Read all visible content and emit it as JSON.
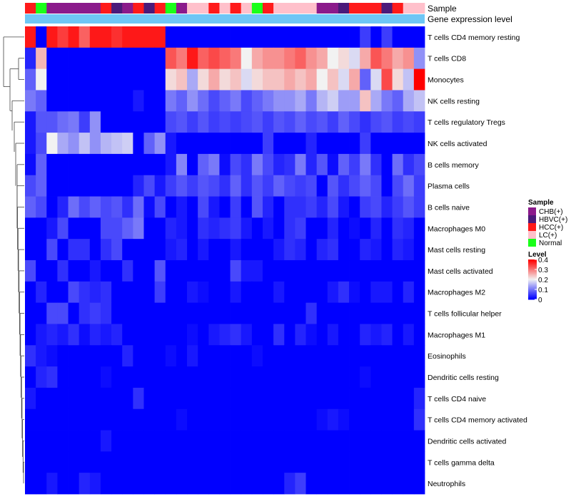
{
  "chart_data": {
    "type": "heatmap",
    "title": "",
    "annotations": {
      "sample_label": "Sample",
      "gene_label": "Gene expression level"
    },
    "sample_groups": [
      {
        "name": "CHB(+)",
        "color": "#8B1A8B"
      },
      {
        "name": "HBVC(+)",
        "color": "#4B1A7A"
      },
      {
        "name": "HCC(+)",
        "color": "#FF1A1A"
      },
      {
        "name": "LC(+)",
        "color": "#FFC0CB"
      },
      {
        "name": "Normal",
        "color": "#1AFF1A"
      }
    ],
    "column_samples": [
      "HCC(+)",
      "Normal",
      "CHB(+)",
      "CHB(+)",
      "CHB(+)",
      "CHB(+)",
      "CHB(+)",
      "HCC(+)",
      "HBVC(+)",
      "CHB(+)",
      "HCC(+)",
      "HBVC(+)",
      "HCC(+)",
      "Normal",
      "CHB(+)",
      "LC(+)",
      "LC(+)",
      "HCC(+)",
      "LC(+)",
      "HCC(+)",
      "LC(+)",
      "Normal",
      "HCC(+)",
      "LC(+)",
      "LC(+)",
      "LC(+)",
      "LC(+)",
      "CHB(+)",
      "CHB(+)",
      "HBVC(+)",
      "HCC(+)",
      "HCC(+)",
      "HCC(+)",
      "HBVC(+)",
      "HCC(+)",
      "LC(+)",
      "LC(+)"
    ],
    "gene_expression_color": "#6EC6F5",
    "rows": [
      "T cells CD4 memory resting",
      "T cells CD8",
      "Monocytes",
      "NK cells resting",
      "T cells regulatory  Tregs",
      "NK cells activated",
      "B cells memory",
      "Plasma cells",
      "B cells naive",
      "Macrophages M0",
      "Mast cells resting",
      "Mast cells activated",
      "Macrophages M2",
      "T cells follicular helper",
      "Macrophages M1",
      "Eosinophils",
      "Dendritic cells resting",
      "T cells CD4 naive",
      "T cells CD4 memory activated",
      "Dendritic cells activated",
      "T cells gamma delta",
      "Neutrophils"
    ],
    "values": [
      [
        0.38,
        0.0,
        0.38,
        0.35,
        0.38,
        0.32,
        0.38,
        0.38,
        0.36,
        0.38,
        0.38,
        0.38,
        0.38,
        0.0,
        0.0,
        0.0,
        0.0,
        0.0,
        0.0,
        0.0,
        0.0,
        0.0,
        0.0,
        0.0,
        0.0,
        0.0,
        0.0,
        0.0,
        0.0,
        0.0,
        0.0,
        0.05,
        0.0,
        0.05,
        0.0,
        0.0,
        0.0
      ],
      [
        0.03,
        0.25,
        0.0,
        0.0,
        0.0,
        0.0,
        0.0,
        0.0,
        0.0,
        0.0,
        0.0,
        0.0,
        0.0,
        0.33,
        0.3,
        0.38,
        0.32,
        0.34,
        0.32,
        0.3,
        0.2,
        0.26,
        0.28,
        0.28,
        0.3,
        0.32,
        0.28,
        0.26,
        0.2,
        0.22,
        0.18,
        0.26,
        0.33,
        0.3,
        0.26,
        0.28,
        0.12
      ],
      [
        0.08,
        0.2,
        0.0,
        0.0,
        0.0,
        0.0,
        0.0,
        0.0,
        0.0,
        0.0,
        0.0,
        0.0,
        0.0,
        0.22,
        0.24,
        0.14,
        0.22,
        0.26,
        0.22,
        0.24,
        0.18,
        0.22,
        0.24,
        0.24,
        0.26,
        0.24,
        0.26,
        0.2,
        0.24,
        0.18,
        0.26,
        0.08,
        0.18,
        0.34,
        0.22,
        0.16,
        0.4
      ],
      [
        0.1,
        0.08,
        0.0,
        0.0,
        0.0,
        0.0,
        0.0,
        0.0,
        0.0,
        0.0,
        0.02,
        0.0,
        0.0,
        0.1,
        0.08,
        0.12,
        0.09,
        0.06,
        0.08,
        0.1,
        0.06,
        0.08,
        0.1,
        0.12,
        0.12,
        0.14,
        0.1,
        0.15,
        0.17,
        0.13,
        0.13,
        0.24,
        0.14,
        0.1,
        0.08,
        0.14,
        0.16
      ],
      [
        0.02,
        0.07,
        0.07,
        0.09,
        0.1,
        0.05,
        0.12,
        0.0,
        0.0,
        0.0,
        0.0,
        0.0,
        0.0,
        0.06,
        0.07,
        0.05,
        0.07,
        0.05,
        0.06,
        0.05,
        0.06,
        0.07,
        0.05,
        0.07,
        0.06,
        0.08,
        0.06,
        0.07,
        0.05,
        0.08,
        0.06,
        0.04,
        0.06,
        0.07,
        0.05,
        0.06,
        0.05
      ],
      [
        0.02,
        0.06,
        0.2,
        0.14,
        0.12,
        0.16,
        0.12,
        0.15,
        0.16,
        0.17,
        0.0,
        0.08,
        0.12,
        0.02,
        0.0,
        0.0,
        0.0,
        0.0,
        0.0,
        0.0,
        0.0,
        0.0,
        0.05,
        0.0,
        0.0,
        0.0,
        0.03,
        0.0,
        0.0,
        0.0,
        0.0,
        0.05,
        0.0,
        0.0,
        0.0,
        0.0,
        0.0
      ],
      [
        0.01,
        0.08,
        0.0,
        0.0,
        0.0,
        0.0,
        0.0,
        0.0,
        0.0,
        0.0,
        0.0,
        0.0,
        0.0,
        0.02,
        0.11,
        0.0,
        0.08,
        0.1,
        0.01,
        0.06,
        0.04,
        0.1,
        0.06,
        0.03,
        0.04,
        0.1,
        0.03,
        0.07,
        0.01,
        0.08,
        0.05,
        0.1,
        0.04,
        0.0,
        0.09,
        0.04,
        0.06
      ],
      [
        0.06,
        0.08,
        0.0,
        0.0,
        0.0,
        0.0,
        0.0,
        0.0,
        0.0,
        0.0,
        0.03,
        0.06,
        0.02,
        0.05,
        0.07,
        0.05,
        0.07,
        0.06,
        0.04,
        0.08,
        0.04,
        0.07,
        0.05,
        0.08,
        0.06,
        0.05,
        0.06,
        0.0,
        0.07,
        0.04,
        0.06,
        0.08,
        0.06,
        0.0,
        0.06,
        0.09,
        0.05
      ],
      [
        0.08,
        0.06,
        0.0,
        0.03,
        0.09,
        0.06,
        0.08,
        0.06,
        0.07,
        0.04,
        0.09,
        0.01,
        0.06,
        0.0,
        0.02,
        0.0,
        0.06,
        0.02,
        0.0,
        0.05,
        0.0,
        0.07,
        0.03,
        0.0,
        0.04,
        0.04,
        0.05,
        0.03,
        0.06,
        0.02,
        0.0,
        0.05,
        0.06,
        0.03,
        0.05,
        0.07,
        0.05
      ],
      [
        0.0,
        0.0,
        0.02,
        0.06,
        0.0,
        0.0,
        0.0,
        0.06,
        0.06,
        0.08,
        0.1,
        0.0,
        0.0,
        0.03,
        0.02,
        0.0,
        0.04,
        0.03,
        0.04,
        0.05,
        0.02,
        0.0,
        0.02,
        0.0,
        0.04,
        0.05,
        0.0,
        0.0,
        0.03,
        0.0,
        0.01,
        0.0,
        0.03,
        0.0,
        0.04,
        0.03,
        0.0
      ],
      [
        0.0,
        0.0,
        0.06,
        0.0,
        0.04,
        0.04,
        0.0,
        0.04,
        0.06,
        0.0,
        0.0,
        0.0,
        0.0,
        0.02,
        0.03,
        0.0,
        0.02,
        0.0,
        0.0,
        0.02,
        0.0,
        0.0,
        0.0,
        0.02,
        0.04,
        0.03,
        0.0,
        0.03,
        0.04,
        0.0,
        0.0,
        0.03,
        0.02,
        0.0,
        0.03,
        0.02,
        0.0
      ],
      [
        0.06,
        0.0,
        0.0,
        0.04,
        0.0,
        0.0,
        0.02,
        0.0,
        0.0,
        0.04,
        0.0,
        0.0,
        0.07,
        0.0,
        0.0,
        0.0,
        0.0,
        0.0,
        0.0,
        0.06,
        0.02,
        0.02,
        0.0,
        0.0,
        0.0,
        0.0,
        0.0,
        0.0,
        0.0,
        0.0,
        0.0,
        0.0,
        0.0,
        0.0,
        0.0,
        0.0,
        0.0
      ],
      [
        0.0,
        0.03,
        0.0,
        0.0,
        0.06,
        0.04,
        0.03,
        0.04,
        0.0,
        0.0,
        0.0,
        0.0,
        0.05,
        0.0,
        0.0,
        0.02,
        0.01,
        0.0,
        0.0,
        0.02,
        0.0,
        0.0,
        0.0,
        0.02,
        0.0,
        0.0,
        0.0,
        0.0,
        0.02,
        0.04,
        0.01,
        0.0,
        0.02,
        0.02,
        0.0,
        0.03,
        0.0
      ],
      [
        0.0,
        0.0,
        0.06,
        0.06,
        0.0,
        0.04,
        0.05,
        0.04,
        0.0,
        0.0,
        0.0,
        0.0,
        0.0,
        0.0,
        0.0,
        0.0,
        0.0,
        0.0,
        0.0,
        0.0,
        0.0,
        0.0,
        0.0,
        0.0,
        0.0,
        0.0,
        0.04,
        0.0,
        0.0,
        0.0,
        0.0,
        0.0,
        0.0,
        0.0,
        0.0,
        0.0,
        0.0
      ],
      [
        0.0,
        0.02,
        0.03,
        0.02,
        0.04,
        0.01,
        0.03,
        0.02,
        0.03,
        0.0,
        0.0,
        0.0,
        0.0,
        0.0,
        0.0,
        0.01,
        0.0,
        0.02,
        0.03,
        0.04,
        0.02,
        0.0,
        0.0,
        0.04,
        0.0,
        0.03,
        0.01,
        0.0,
        0.02,
        0.0,
        0.0,
        0.03,
        0.02,
        0.03,
        0.0,
        0.02,
        0.0
      ],
      [
        0.04,
        0.02,
        0.01,
        0.0,
        0.0,
        0.0,
        0.0,
        0.0,
        0.0,
        0.03,
        0.0,
        0.0,
        0.0,
        0.01,
        0.0,
        0.02,
        0.0,
        0.0,
        0.0,
        0.0,
        0.0,
        0.01,
        0.0,
        0.0,
        0.0,
        0.0,
        0.0,
        0.0,
        0.0,
        0.0,
        0.0,
        0.0,
        0.0,
        0.0,
        0.0,
        0.0,
        0.0
      ],
      [
        0.0,
        0.03,
        0.04,
        0.0,
        0.0,
        0.0,
        0.0,
        0.01,
        0.0,
        0.0,
        0.0,
        0.0,
        0.0,
        0.0,
        0.0,
        0.0,
        0.0,
        0.0,
        0.0,
        0.0,
        0.0,
        0.0,
        0.0,
        0.0,
        0.0,
        0.0,
        0.0,
        0.0,
        0.0,
        0.0,
        0.0,
        0.01,
        0.0,
        0.0,
        0.0,
        0.0,
        0.0
      ],
      [
        0.02,
        0.0,
        0.0,
        0.0,
        0.0,
        0.0,
        0.0,
        0.0,
        0.0,
        0.0,
        0.04,
        0.0,
        0.0,
        0.0,
        0.0,
        0.0,
        0.0,
        0.0,
        0.0,
        0.0,
        0.0,
        0.0,
        0.0,
        0.0,
        0.0,
        0.0,
        0.0,
        0.0,
        0.0,
        0.0,
        0.0,
        0.0,
        0.0,
        0.0,
        0.0,
        0.0,
        0.03
      ],
      [
        0.0,
        0.0,
        0.0,
        0.0,
        0.0,
        0.0,
        0.0,
        0.0,
        0.0,
        0.0,
        0.0,
        0.0,
        0.0,
        0.0,
        0.01,
        0.0,
        0.0,
        0.0,
        0.0,
        0.0,
        0.0,
        0.0,
        0.0,
        0.0,
        0.0,
        0.0,
        0.0,
        0.01,
        0.02,
        0.01,
        0.0,
        0.0,
        0.0,
        0.0,
        0.0,
        0.0,
        0.04
      ],
      [
        0.0,
        0.0,
        0.0,
        0.0,
        0.0,
        0.0,
        0.0,
        0.02,
        0.0,
        0.0,
        0.0,
        0.0,
        0.0,
        0.0,
        0.0,
        0.0,
        0.0,
        0.0,
        0.0,
        0.0,
        0.0,
        0.0,
        0.0,
        0.0,
        0.0,
        0.0,
        0.0,
        0.0,
        0.0,
        0.0,
        0.0,
        0.0,
        0.0,
        0.0,
        0.0,
        0.0,
        0.0
      ],
      [
        0.0,
        0.0,
        0.0,
        0.0,
        0.0,
        0.0,
        0.0,
        0.0,
        0.0,
        0.0,
        0.0,
        0.0,
        0.0,
        0.0,
        0.0,
        0.0,
        0.0,
        0.0,
        0.0,
        0.0,
        0.0,
        0.0,
        0.0,
        0.0,
        0.0,
        0.0,
        0.0,
        0.0,
        0.0,
        0.0,
        0.0,
        0.0,
        0.0,
        0.0,
        0.0,
        0.0,
        0.0
      ],
      [
        0.0,
        0.0,
        0.02,
        0.0,
        0.0,
        0.03,
        0.02,
        0.0,
        0.0,
        0.0,
        0.0,
        0.0,
        0.0,
        0.0,
        0.0,
        0.0,
        0.0,
        0.0,
        0.0,
        0.0,
        0.0,
        0.0,
        0.0,
        0.0,
        0.03,
        0.05,
        0.0,
        0.0,
        0.0,
        0.0,
        0.0,
        0.0,
        0.0,
        0.0,
        0.0,
        0.0,
        0.0
      ]
    ],
    "color_scale": {
      "low": "#0000FF",
      "mid": "#F2F2F2",
      "high": "#FF0000",
      "domain": [
        0,
        0.2,
        0.4
      ]
    },
    "legend": {
      "sample_title": "Sample",
      "level_title": "Level",
      "level_ticks": [
        "0.4",
        "0.3",
        "0.2",
        "0.1",
        "0"
      ]
    }
  }
}
